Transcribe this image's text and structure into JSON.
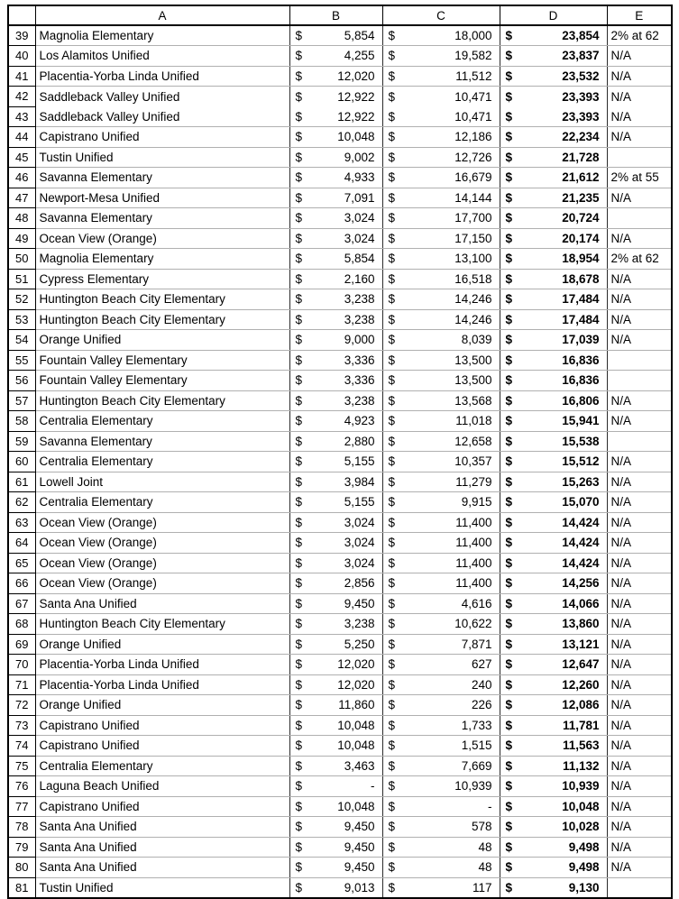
{
  "sheet": {
    "corner_label": "",
    "column_headers": [
      "A",
      "B",
      "C",
      "D",
      "E"
    ],
    "currency_symbol": "$",
    "rows": [
      {
        "num": "39",
        "district": "Magnolia Elementary",
        "b": "5,854",
        "c": "18,000",
        "d": "23,854",
        "e": "2% at 62"
      },
      {
        "num": "40",
        "district": "Los Alamitos Unified",
        "b": "4,255",
        "c": "19,582",
        "d": "23,837",
        "e": "N/A"
      },
      {
        "num": "41",
        "district": "Placentia-Yorba Linda Unified",
        "b": "12,020",
        "c": "11,512",
        "d": "23,532",
        "e": "N/A"
      },
      {
        "num": "42",
        "district": "Saddleback Valley Unified",
        "b": "12,922",
        "c": "10,471",
        "d": "23,393",
        "e": "N/A"
      },
      {
        "num": "43",
        "district": "Saddleback Valley Unified",
        "b": "12,922",
        "c": "10,471",
        "d": "23,393",
        "e": "N/A"
      },
      {
        "num": "44",
        "district": "Capistrano Unified",
        "b": "10,048",
        "c": "12,186",
        "d": "22,234",
        "e": "N/A"
      },
      {
        "num": "45",
        "district": "Tustin Unified",
        "b": "9,002",
        "c": "12,726",
        "d": "21,728",
        "e": ""
      },
      {
        "num": "46",
        "district": "Savanna Elementary",
        "b": "4,933",
        "c": "16,679",
        "d": "21,612",
        "e": "2% at 55"
      },
      {
        "num": "47",
        "district": "Newport-Mesa Unified",
        "b": "7,091",
        "c": "14,144",
        "d": "21,235",
        "e": "N/A"
      },
      {
        "num": "48",
        "district": "Savanna Elementary",
        "b": "3,024",
        "c": "17,700",
        "d": "20,724",
        "e": ""
      },
      {
        "num": "49",
        "district": "Ocean View (Orange)",
        "b": "3,024",
        "c": "17,150",
        "d": "20,174",
        "e": "N/A"
      },
      {
        "num": "50",
        "district": "Magnolia Elementary",
        "b": "5,854",
        "c": "13,100",
        "d": "18,954",
        "e": "2% at 62"
      },
      {
        "num": "51",
        "district": "Cypress Elementary",
        "b": "2,160",
        "c": "16,518",
        "d": "18,678",
        "e": "N/A"
      },
      {
        "num": "52",
        "district": "Huntington Beach City Elementary",
        "b": "3,238",
        "c": "14,246",
        "d": "17,484",
        "e": "N/A"
      },
      {
        "num": "53",
        "district": "Huntington Beach City Elementary",
        "b": "3,238",
        "c": "14,246",
        "d": "17,484",
        "e": "N/A"
      },
      {
        "num": "54",
        "district": "Orange Unified",
        "b": "9,000",
        "c": "8,039",
        "d": "17,039",
        "e": "N/A"
      },
      {
        "num": "55",
        "district": "Fountain Valley Elementary",
        "b": "3,336",
        "c": "13,500",
        "d": "16,836",
        "e": ""
      },
      {
        "num": "56",
        "district": "Fountain Valley Elementary",
        "b": "3,336",
        "c": "13,500",
        "d": "16,836",
        "e": ""
      },
      {
        "num": "57",
        "district": "Huntington Beach City Elementary",
        "b": "3,238",
        "c": "13,568",
        "d": "16,806",
        "e": "N/A"
      },
      {
        "num": "58",
        "district": "Centralia Elementary",
        "b": "4,923",
        "c": "11,018",
        "d": "15,941",
        "e": "N/A"
      },
      {
        "num": "59",
        "district": "Savanna Elementary",
        "b": "2,880",
        "c": "12,658",
        "d": "15,538",
        "e": ""
      },
      {
        "num": "60",
        "district": "Centralia Elementary",
        "b": "5,155",
        "c": "10,357",
        "d": "15,512",
        "e": "N/A"
      },
      {
        "num": "61",
        "district": "Lowell Joint",
        "b": "3,984",
        "c": "11,279",
        "d": "15,263",
        "e": "N/A"
      },
      {
        "num": "62",
        "district": "Centralia Elementary",
        "b": "5,155",
        "c": "9,915",
        "d": "15,070",
        "e": "N/A"
      },
      {
        "num": "63",
        "district": "Ocean View (Orange)",
        "b": "3,024",
        "c": "11,400",
        "d": "14,424",
        "e": "N/A"
      },
      {
        "num": "64",
        "district": "Ocean View (Orange)",
        "b": "3,024",
        "c": "11,400",
        "d": "14,424",
        "e": "N/A"
      },
      {
        "num": "65",
        "district": "Ocean View (Orange)",
        "b": "3,024",
        "c": "11,400",
        "d": "14,424",
        "e": "N/A"
      },
      {
        "num": "66",
        "district": "Ocean View (Orange)",
        "b": "2,856",
        "c": "11,400",
        "d": "14,256",
        "e": "N/A"
      },
      {
        "num": "67",
        "district": "Santa Ana Unified",
        "b": "9,450",
        "c": "4,616",
        "d": "14,066",
        "e": "N/A"
      },
      {
        "num": "68",
        "district": "Huntington Beach City Elementary",
        "b": "3,238",
        "c": "10,622",
        "d": "13,860",
        "e": "N/A"
      },
      {
        "num": "69",
        "district": "Orange Unified",
        "b": "5,250",
        "c": "7,871",
        "d": "13,121",
        "e": "N/A"
      },
      {
        "num": "70",
        "district": "Placentia-Yorba Linda Unified",
        "b": "12,020",
        "c": "627",
        "d": "12,647",
        "e": "N/A"
      },
      {
        "num": "71",
        "district": "Placentia-Yorba Linda Unified",
        "b": "12,020",
        "c": "240",
        "d": "12,260",
        "e": "N/A"
      },
      {
        "num": "72",
        "district": "Orange Unified",
        "b": "11,860",
        "c": "226",
        "d": "12,086",
        "e": "N/A"
      },
      {
        "num": "73",
        "district": "Capistrano Unified",
        "b": "10,048",
        "c": "1,733",
        "d": "11,781",
        "e": "N/A"
      },
      {
        "num": "74",
        "district": "Capistrano Unified",
        "b": "10,048",
        "c": "1,515",
        "d": "11,563",
        "e": "N/A"
      },
      {
        "num": "75",
        "district": "Centralia Elementary",
        "b": "3,463",
        "c": "7,669",
        "d": "11,132",
        "e": "N/A"
      },
      {
        "num": "76",
        "district": "Laguna Beach Unified",
        "b": "-",
        "c": "10,939",
        "d": "10,939",
        "e": "N/A"
      },
      {
        "num": "77",
        "district": "Capistrano Unified",
        "b": "10,048",
        "c": "-",
        "d": "10,048",
        "e": "N/A"
      },
      {
        "num": "78",
        "district": "Santa Ana Unified",
        "b": "9,450",
        "c": "578",
        "d": "10,028",
        "e": "N/A"
      },
      {
        "num": "79",
        "district": "Santa Ana Unified",
        "b": "9,450",
        "c": "48",
        "d": "9,498",
        "e": "N/A"
      },
      {
        "num": "80",
        "district": "Santa Ana Unified",
        "b": "9,450",
        "c": "48",
        "d": "9,498",
        "e": "N/A"
      },
      {
        "num": "81",
        "district": "Tustin Unified",
        "b": "9,013",
        "c": "117",
        "d": "9,130",
        "e": ""
      }
    ]
  },
  "colors": {
    "background": "#ffffff",
    "text": "#000000",
    "grid_vertical": "#2b2b2b",
    "grid_horizontal": "#b0b0b0",
    "outer_border": "#000000"
  }
}
